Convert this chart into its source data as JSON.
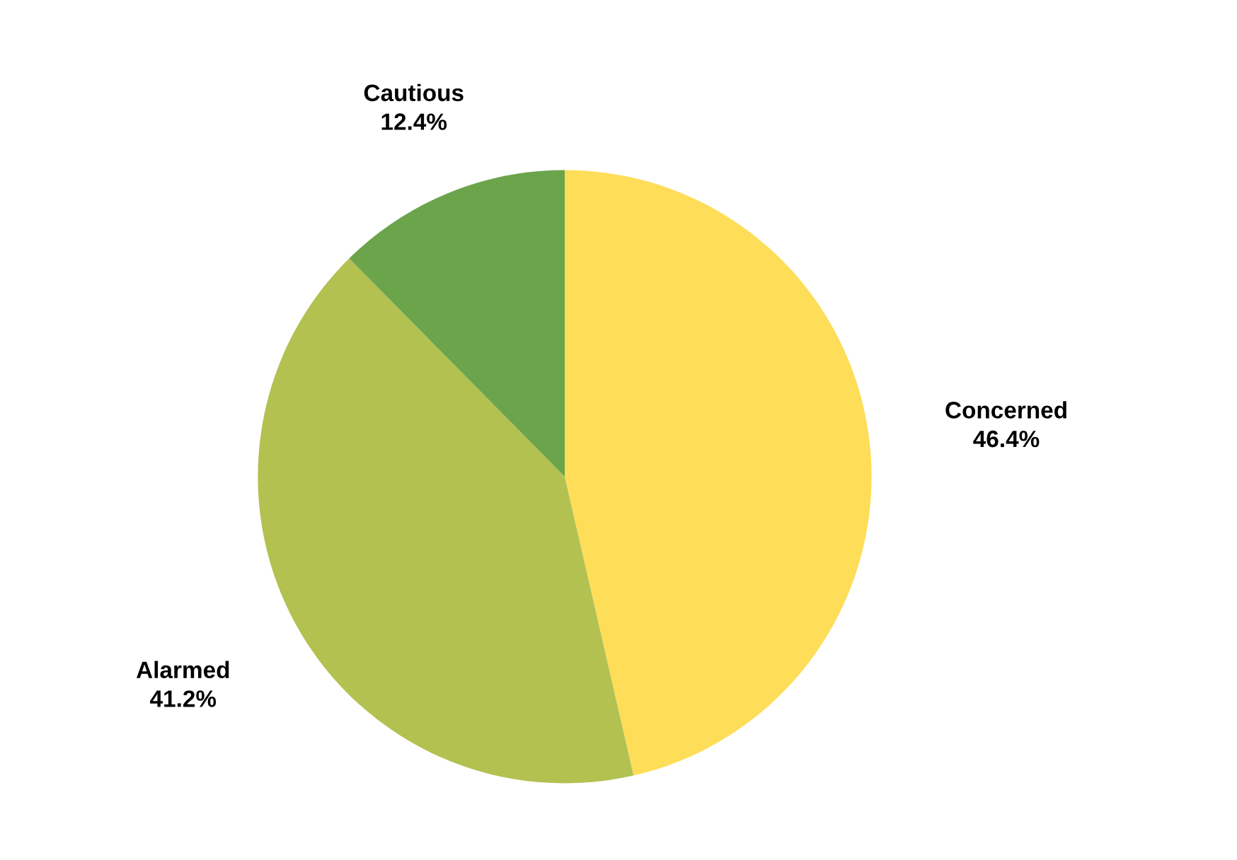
{
  "chart_data": {
    "type": "pie",
    "categories": [
      "Concerned",
      "Alarmed",
      "Cautious"
    ],
    "values": [
      46.4,
      41.2,
      12.4
    ],
    "colors": [
      "#fedd58",
      "#b2c150",
      "#6ca44b"
    ],
    "value_labels": [
      "46.4%",
      "41.2%",
      "12.4%"
    ]
  }
}
